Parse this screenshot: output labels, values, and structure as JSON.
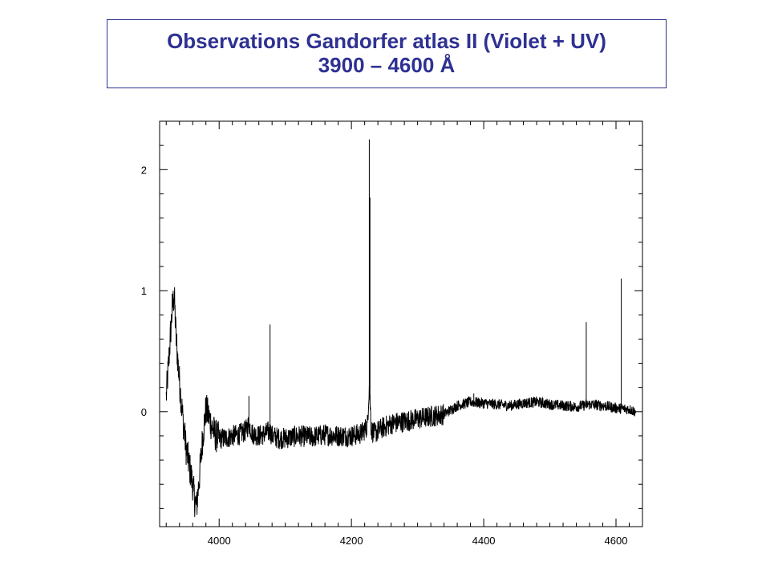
{
  "title": {
    "line1": "Observations Gandorfer atlas II (Violet + UV)",
    "line2": "3900 – 4600 Å"
  },
  "chart_data": {
    "type": "line",
    "title": "Observations Gandorfer atlas II (Violet + UV) 3900 – 4600 Å",
    "xlabel": "",
    "ylabel": "",
    "xlim": [
      3910,
      4640
    ],
    "ylim": [
      -0.95,
      2.4
    ],
    "x_ticks": [
      4000,
      4200,
      4400,
      4600
    ],
    "x_tick_labels": [
      "4000",
      "4200",
      "4400",
      "4600"
    ],
    "y_ticks": [
      0,
      1,
      2
    ],
    "y_tick_labels": [
      "0",
      "1",
      "2"
    ],
    "grid": false,
    "line_color": "#000000",
    "series": [
      {
        "x": [
          3920,
          3923,
          3926,
          3929,
          3932,
          3935,
          3940,
          3945,
          3950,
          3955,
          3960,
          3963,
          3966,
          3970,
          3975,
          3980,
          3985,
          3990,
          3995,
          4000,
          4010,
          4020,
          4030,
          4040,
          4045,
          4050,
          4060,
          4070,
          4077,
          4080,
          4090,
          4100,
          4120,
          4140,
          4160,
          4180,
          4200,
          4215,
          4224,
          4227,
          4230,
          4235,
          4245,
          4260,
          4280,
          4300,
          4320,
          4340,
          4360,
          4380,
          4400,
          4420,
          4440,
          4460,
          4480,
          4500,
          4520,
          4540,
          4560,
          4580,
          4600,
          4620,
          4630
        ],
        "y": [
          0.12,
          0.35,
          0.6,
          0.85,
          0.97,
          0.6,
          0.25,
          -0.05,
          -0.3,
          -0.45,
          -0.6,
          -0.73,
          -0.78,
          -0.55,
          -0.22,
          0.02,
          -0.05,
          -0.14,
          -0.2,
          -0.22,
          -0.22,
          -0.2,
          -0.19,
          -0.16,
          -0.1,
          -0.18,
          -0.2,
          -0.18,
          -0.16,
          -0.2,
          -0.22,
          -0.22,
          -0.2,
          -0.21,
          -0.19,
          -0.2,
          -0.2,
          -0.18,
          -0.12,
          0.22,
          -0.15,
          -0.18,
          -0.14,
          -0.1,
          -0.08,
          -0.06,
          -0.04,
          -0.02,
          0.05,
          0.08,
          0.07,
          0.06,
          0.05,
          0.07,
          0.08,
          0.06,
          0.05,
          0.04,
          0.06,
          0.05,
          0.03,
          0.02,
          0.0
        ]
      }
    ],
    "emission_spikes": [
      {
        "x": 3932,
        "y": 0.97
      },
      {
        "x": 4045,
        "y": 0.13
      },
      {
        "x": 4077,
        "y": 0.72
      },
      {
        "x": 4227,
        "y": 2.25
      },
      {
        "x": 4228,
        "y": 1.77
      },
      {
        "x": 4385,
        "y": 0.15
      },
      {
        "x": 4555,
        "y": 0.74
      },
      {
        "x": 4608,
        "y": 1.1
      }
    ]
  }
}
